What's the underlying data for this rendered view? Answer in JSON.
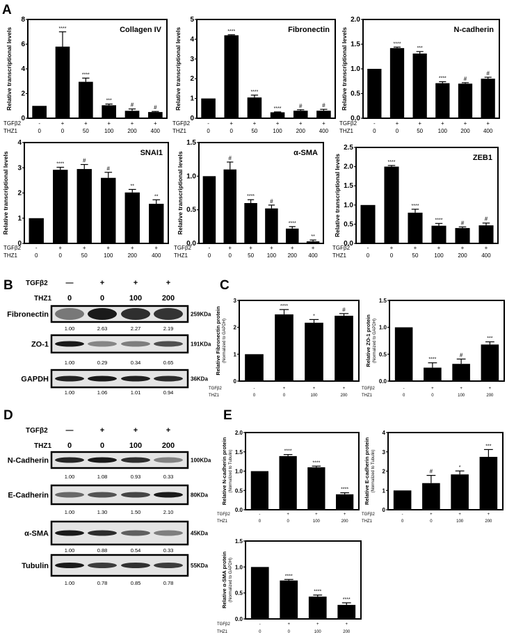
{
  "panel_letters": [
    "A",
    "B",
    "C",
    "D",
    "E"
  ],
  "row_labels": {
    "tgf": "TGFβ2",
    "thz": "THZ1"
  },
  "chart_data": [
    {
      "type": "bar",
      "panel": "A",
      "title": "Collagen IV",
      "ylabel": "Relative transcriptional levels",
      "ylabel2": "",
      "ylim": [
        0,
        8
      ],
      "yticks": [
        "0",
        "2",
        "4",
        "6",
        "8"
      ],
      "tgf": [
        "-",
        "+",
        "+",
        "+",
        "+",
        "+"
      ],
      "thz": [
        "0",
        "0",
        "50",
        "100",
        "200",
        "400"
      ],
      "values": [
        1,
        5.8,
        2.95,
        1.05,
        0.6,
        0.5
      ],
      "errors": [
        0,
        1.2,
        0.3,
        0.1,
        0.15,
        0.05
      ],
      "sig": [
        "",
        "****",
        "****",
        "***",
        "#",
        "#"
      ]
    },
    {
      "type": "bar",
      "panel": "A",
      "title": "Fibronectin",
      "ylabel": "Relative transcriptional levels",
      "ylabel2": "",
      "ylim": [
        0,
        5
      ],
      "yticks": [
        "0",
        "1",
        "2",
        "3",
        "4",
        "5"
      ],
      "tgf": [
        "-",
        "+",
        "+",
        "+",
        "+",
        "+"
      ],
      "thz": [
        "0",
        "0",
        "50",
        "100",
        "200",
        "400"
      ],
      "values": [
        1,
        4.2,
        1.05,
        0.3,
        0.38,
        0.38
      ],
      "errors": [
        0,
        0.03,
        0.12,
        0.02,
        0.05,
        0.07
      ],
      "sig": [
        "",
        "****",
        "****",
        "****",
        "#",
        "#"
      ]
    },
    {
      "type": "bar",
      "panel": "A",
      "title": "N-cadherin",
      "ylabel": "Relative transcriptional levels",
      "ylabel2": "",
      "ylim": [
        0,
        2
      ],
      "yticks": [
        "0.0",
        "0.5",
        "1.0",
        "1.5",
        "2.0"
      ],
      "tgf": [
        "-",
        "+",
        "+",
        "+",
        "+",
        "+"
      ],
      "thz": [
        "0",
        "0",
        "50",
        "100",
        "200",
        "400"
      ],
      "values": [
        1,
        1.42,
        1.31,
        0.71,
        0.7,
        0.8
      ],
      "errors": [
        0,
        0.02,
        0.04,
        0.03,
        0.02,
        0.03
      ],
      "sig": [
        "",
        "****",
        "***",
        "****",
        "#",
        "#"
      ]
    },
    {
      "type": "bar",
      "panel": "A",
      "title": "SNAI1",
      "ylabel": "Relative transcriptional levels",
      "ylabel2": "",
      "ylim": [
        0,
        4
      ],
      "yticks": [
        "0",
        "1",
        "2",
        "3",
        "4"
      ],
      "tgf": [
        "-",
        "+",
        "+",
        "+",
        "+",
        "+"
      ],
      "thz": [
        "0",
        "0",
        "50",
        "100",
        "200",
        "400"
      ],
      "values": [
        1,
        2.92,
        2.95,
        2.6,
        2.02,
        1.57
      ],
      "errors": [
        0,
        0.1,
        0.18,
        0.22,
        0.12,
        0.16
      ],
      "sig": [
        "",
        "****",
        "#",
        "#",
        "**",
        "**"
      ]
    },
    {
      "type": "bar",
      "panel": "A",
      "title": "α-SMA",
      "ylabel": "Relative transcriptional levels",
      "ylabel2": "",
      "ylim": [
        0,
        1.5
      ],
      "yticks": [
        "0.0",
        "0.5",
        "1.0",
        "1.5"
      ],
      "tgf": [
        "-",
        "+",
        "+",
        "+",
        "+",
        "+"
      ],
      "thz": [
        "0",
        "0",
        "50",
        "100",
        "200",
        "400"
      ],
      "values": [
        1,
        1.1,
        0.6,
        0.52,
        0.22,
        0.03
      ],
      "errors": [
        0,
        0.11,
        0.05,
        0.05,
        0.03,
        0.02
      ],
      "sig": [
        "",
        "#",
        "****",
        "#",
        "****",
        "**"
      ]
    },
    {
      "type": "bar",
      "panel": "A",
      "title": "ZEB1",
      "ylabel": "Relative transcriptional levels",
      "ylabel2": "",
      "ylim": [
        0,
        2.5
      ],
      "yticks": [
        "0.0",
        "0.5",
        "1.0",
        "1.5",
        "2.0",
        "2.5"
      ],
      "tgf": [
        "-",
        "+",
        "+",
        "+",
        "+",
        "+"
      ],
      "thz": [
        "0",
        "0",
        "50",
        "100",
        "200",
        "400"
      ],
      "values": [
        1,
        2.0,
        0.8,
        0.46,
        0.4,
        0.47
      ],
      "errors": [
        0,
        0.03,
        0.09,
        0.06,
        0.03,
        0.06
      ],
      "sig": [
        "",
        "****",
        "****",
        "****",
        "#",
        "#"
      ]
    },
    {
      "type": "bar",
      "panel": "C",
      "title": "",
      "ylabel": "Relative Fibronectin protein",
      "ylabel2": "(Normalized to GAPDH)",
      "ylim": [
        0,
        3
      ],
      "yticks": [
        "0",
        "1",
        "2",
        "3"
      ],
      "tgf": [
        "-",
        "+",
        "+",
        "+"
      ],
      "thz": [
        "0",
        "0",
        "100",
        "200"
      ],
      "values": [
        1,
        2.48,
        2.17,
        2.43
      ],
      "errors": [
        0,
        0.18,
        0.12,
        0.08
      ],
      "sig": [
        "",
        "****",
        "*",
        "#"
      ]
    },
    {
      "type": "bar",
      "panel": "C",
      "title": "",
      "ylabel": "Relative ZO-1 protein",
      "ylabel2": "(Normalized to GAPDH)",
      "ylim": [
        0,
        1.5
      ],
      "yticks": [
        "0.0",
        "0.5",
        "1.0",
        "1.5"
      ],
      "tgf": [
        "-",
        "+",
        "+",
        "+"
      ],
      "thz": [
        "0",
        "0",
        "100",
        "200"
      ],
      "values": [
        1,
        0.25,
        0.32,
        0.68
      ],
      "errors": [
        0,
        0.09,
        0.09,
        0.05
      ],
      "sig": [
        "",
        "****",
        "#",
        "***"
      ]
    },
    {
      "type": "bar",
      "panel": "E",
      "title": "",
      "ylabel": "Relative N-cadherin protein",
      "ylabel2": "(Normalized to Tubulin)",
      "ylim": [
        0,
        2
      ],
      "yticks": [
        "0.0",
        "0.5",
        "1.0",
        "1.5",
        "2.0"
      ],
      "tgf": [
        "-",
        "+",
        "+",
        "+"
      ],
      "thz": [
        "0",
        "0",
        "100",
        "200"
      ],
      "values": [
        1,
        1.39,
        1.1,
        0.4
      ],
      "errors": [
        0,
        0.04,
        0.03,
        0.04
      ],
      "sig": [
        "",
        "****",
        "****",
        "****"
      ]
    },
    {
      "type": "bar",
      "panel": "E",
      "title": "",
      "ylabel": "Relative E-cadherin protein",
      "ylabel2": "(Normalized to Tubulin)",
      "ylim": [
        0,
        4
      ],
      "yticks": [
        "0",
        "1",
        "2",
        "3",
        "4"
      ],
      "tgf": [
        "-",
        "+",
        "+",
        "+"
      ],
      "thz": [
        "0",
        "0",
        "100",
        "200"
      ],
      "values": [
        1,
        1.38,
        1.83,
        2.74
      ],
      "errors": [
        0,
        0.4,
        0.18,
        0.38
      ],
      "sig": [
        "",
        "#",
        "*",
        "***"
      ]
    },
    {
      "type": "bar",
      "panel": "E",
      "title": "",
      "ylabel": "Relative α-SMA protein",
      "ylabel2": "(Normalized to GAPDH)",
      "ylim": [
        0,
        1.5
      ],
      "yticks": [
        "0.0",
        "0.5",
        "1.0",
        "1.5"
      ],
      "tgf": [
        "-",
        "+",
        "+",
        "+"
      ],
      "thz": [
        "0",
        "0",
        "100",
        "200"
      ],
      "values": [
        1,
        0.74,
        0.43,
        0.27
      ],
      "errors": [
        0,
        0.02,
        0.03,
        0.04
      ],
      "sig": [
        "",
        "****",
        "****",
        "****"
      ]
    }
  ],
  "blots": [
    {
      "panel": "B",
      "tgf": [
        "—",
        "+",
        "+",
        "+"
      ],
      "thz": [
        "0",
        "0",
        "100",
        "200"
      ],
      "rows": [
        {
          "protein": "Fibronectin",
          "size": "259KDa",
          "quant": [
            "1.00",
            "2.63",
            "2.27",
            "2.19"
          ]
        },
        {
          "protein": "ZO-1",
          "size": "191KDa",
          "quant": [
            "1.00",
            "0.29",
            "0.34",
            "0.65"
          ]
        },
        {
          "protein": "GAPDH",
          "size": "36KDa",
          "quant": [
            "1.00",
            "1.06",
            "1.01",
            "0.94"
          ]
        }
      ]
    },
    {
      "panel": "D",
      "tgf": [
        "—",
        "+",
        "+",
        "+"
      ],
      "thz": [
        "0",
        "0",
        "100",
        "200"
      ],
      "rows": [
        {
          "protein": "N-Cadherin",
          "size": "100KDa",
          "quant": [
            "1.00",
            "1.08",
            "0.93",
            "0.33"
          ]
        },
        {
          "protein": "E-Cadherin",
          "size": "80KDa",
          "quant": [
            "1.00",
            "1.30",
            "1.50",
            "2.10"
          ]
        },
        {
          "protein": "α-SMA",
          "size": "45KDa",
          "quant": [
            "1.00",
            "0.88",
            "0.54",
            "0.33"
          ]
        },
        {
          "protein": "Tubulin",
          "size": "55KDa",
          "quant": [
            "1.00",
            "0.78",
            "0.85",
            "0.78"
          ]
        }
      ]
    }
  ]
}
